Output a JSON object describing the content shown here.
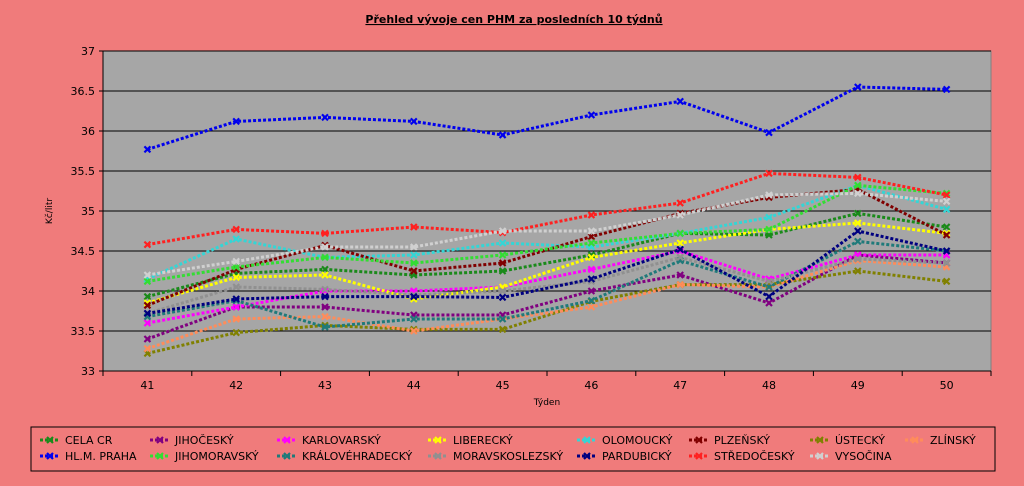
{
  "chart_data": {
    "type": "line",
    "title": "Přehled vývoje cen PHM za posledních 10 týdnů",
    "xlabel": "Týden",
    "ylabel": "Kč/litr",
    "x": [
      41,
      42,
      43,
      44,
      45,
      46,
      47,
      48,
      49,
      50
    ],
    "ylim": [
      33,
      37
    ],
    "yticks": [
      33,
      33.5,
      34,
      34.5,
      35,
      35.5,
      36,
      36.5,
      37
    ],
    "grid": true,
    "legend_position": "bottom",
    "series": [
      {
        "name": "CELA CR",
        "color": "#1a8a1a",
        "values": [
          33.93,
          34.22,
          34.27,
          34.2,
          34.25,
          34.45,
          34.72,
          34.7,
          34.97,
          34.8
        ]
      },
      {
        "name": "JIHOČESKÝ",
        "color": "#800080",
        "values": [
          33.4,
          33.8,
          33.8,
          33.7,
          33.7,
          34.0,
          34.2,
          33.85,
          34.45,
          34.35
        ]
      },
      {
        "name": "KARLOVARSKÝ",
        "color": "#ff00ff",
        "values": [
          33.6,
          33.8,
          34.0,
          34.0,
          34.05,
          34.27,
          34.5,
          34.15,
          34.45,
          34.45
        ]
      },
      {
        "name": "LIBERECKÝ",
        "color": "#ffff00",
        "values": [
          33.85,
          34.17,
          34.2,
          33.9,
          34.05,
          34.42,
          34.6,
          34.77,
          34.85,
          34.72
        ]
      },
      {
        "name": "OLOMOUCKÝ",
        "color": "#33d6d6",
        "values": [
          34.15,
          34.65,
          34.42,
          34.45,
          34.6,
          34.55,
          34.72,
          34.92,
          35.32,
          35.02
        ]
      },
      {
        "name": "PLZEŇSKÝ",
        "color": "#800000",
        "values": [
          33.82,
          34.27,
          34.57,
          34.25,
          34.35,
          34.68,
          34.97,
          35.17,
          35.27,
          34.7
        ]
      },
      {
        "name": "ÚSTECKÝ",
        "color": "#808000",
        "values": [
          33.22,
          33.48,
          33.57,
          33.52,
          33.52,
          33.87,
          34.08,
          34.08,
          34.25,
          34.12
        ]
      },
      {
        "name": "ZLÍNSKÝ",
        "color": "#ff8c5a",
        "values": [
          33.28,
          33.65,
          33.68,
          33.5,
          33.65,
          33.8,
          34.08,
          34.05,
          34.38,
          34.3
        ]
      },
      {
        "name": "HL.M. PRAHA",
        "color": "#0000ee",
        "values": [
          35.77,
          36.12,
          36.17,
          36.12,
          35.95,
          36.2,
          36.37,
          35.98,
          36.55,
          36.52
        ]
      },
      {
        "name": "JIHOMORAVSKÝ",
        "color": "#33dd33",
        "values": [
          34.12,
          34.3,
          34.42,
          34.35,
          34.45,
          34.6,
          34.72,
          34.77,
          35.32,
          35.22
        ]
      },
      {
        "name": "KRÁLOVÉHRADECKÝ",
        "color": "#1f7a7a",
        "values": [
          33.68,
          33.88,
          33.55,
          33.65,
          33.65,
          33.88,
          34.38,
          34.05,
          34.62,
          34.5
        ]
      },
      {
        "name": "MORAVSKOSLEZSKÝ",
        "color": "#909090",
        "values": [
          33.72,
          34.05,
          34.02,
          33.95,
          34.0,
          34.12,
          34.42,
          34.12,
          34.4,
          34.35
        ]
      },
      {
        "name": "PARDUBICKÝ",
        "color": "#000080",
        "values": [
          33.72,
          33.9,
          33.93,
          33.93,
          33.92,
          34.15,
          34.52,
          33.93,
          34.75,
          34.5
        ]
      },
      {
        "name": "STŘEDOČESKÝ",
        "color": "#ff2020",
        "values": [
          34.58,
          34.77,
          34.72,
          34.8,
          34.73,
          34.95,
          35.1,
          35.47,
          35.42,
          35.2
        ]
      },
      {
        "name": "VYSOČINA",
        "color": "#d0d0d0",
        "values": [
          34.2,
          34.37,
          34.55,
          34.55,
          34.75,
          34.75,
          34.95,
          35.2,
          35.22,
          35.12
        ]
      }
    ]
  }
}
